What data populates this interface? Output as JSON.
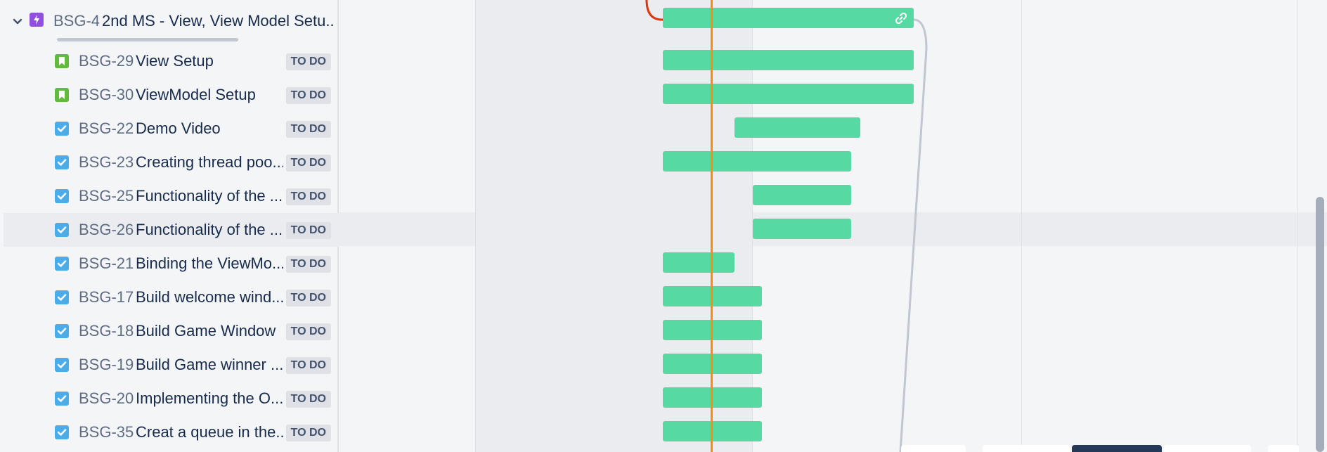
{
  "colors": {
    "bar": "#57d9a3",
    "today_marker": "#ff8b00",
    "epic_icon": "#904ee2",
    "story_icon": "#63ba3c",
    "task_icon": "#4bade8",
    "dependency_line": "#c1c7d0"
  },
  "parent_issue": {
    "key": "BSG-4",
    "title": "2nd MS - View, View Model Setu...",
    "icon": "epic-lightning-icon",
    "expanded": true,
    "expander_icon": "chevron-down-icon",
    "bar_icon": "link-icon"
  },
  "child_issues": [
    {
      "key": "BSG-29",
      "title": "View Setup",
      "status": "TO DO",
      "icon": "story-bookmark-icon"
    },
    {
      "key": "BSG-30",
      "title": "ViewModel Setup",
      "status": "TO DO",
      "icon": "story-bookmark-icon"
    },
    {
      "key": "BSG-22",
      "title": "Demo Video",
      "status": "TO DO",
      "icon": "task-checkbox-icon"
    },
    {
      "key": "BSG-23",
      "title": "Creating thread poo...",
      "status": "TO DO",
      "icon": "task-checkbox-icon"
    },
    {
      "key": "BSG-25",
      "title": "Functionality of the ...",
      "status": "TO DO",
      "icon": "task-checkbox-icon"
    },
    {
      "key": "BSG-26",
      "title": "Functionality of the ...",
      "status": "TO DO",
      "icon": "task-checkbox-icon"
    },
    {
      "key": "BSG-21",
      "title": "Binding the ViewMo...",
      "status": "TO DO",
      "icon": "task-checkbox-icon"
    },
    {
      "key": "BSG-17",
      "title": "Build welcome wind...",
      "status": "TO DO",
      "icon": "task-checkbox-icon"
    },
    {
      "key": "BSG-18",
      "title": "Build Game Window",
      "status": "TO DO",
      "icon": "task-checkbox-icon"
    },
    {
      "key": "BSG-19",
      "title": "Build Game winner ...",
      "status": "TO DO",
      "icon": "task-checkbox-icon"
    },
    {
      "key": "BSG-20",
      "title": "Implementing the O...",
      "status": "TO DO",
      "icon": "task-checkbox-icon"
    },
    {
      "key": "BSG-35",
      "title": "Creat a queue in the...",
      "status": "TO DO",
      "icon": "task-checkbox-icon"
    }
  ]
}
